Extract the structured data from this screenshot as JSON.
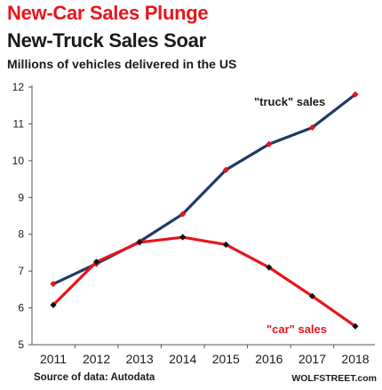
{
  "header": {
    "title": "New-Car Sales Plunge",
    "title2": "New-Truck Sales Soar",
    "subtitle": "Millions of vehicles delivered in the US"
  },
  "footer": {
    "source": "Source of data: Autodata",
    "credit": "WOLFSTREET.com"
  },
  "colors": {
    "truck_line": "#1f3a64",
    "truck_marker": "#e8141b",
    "car_line": "#e8141b",
    "car_marker": "#111111",
    "axis": "#555555",
    "title_red": "#e8141b"
  },
  "chart_data": {
    "type": "line",
    "title": "New-Car Sales Plunge",
    "subtitle": "New-Truck Sales Soar",
    "ylabel": "Millions of vehicles delivered in the US",
    "xlabel": "",
    "x": [
      "2011",
      "2012",
      "2013",
      "2014",
      "2015",
      "2016",
      "2017",
      "2018"
    ],
    "ylim": [
      5,
      12
    ],
    "yticks": [
      5,
      6,
      7,
      8,
      9,
      10,
      11,
      12
    ],
    "grid": false,
    "series": [
      {
        "name": "\"truck\" sales",
        "values": [
          6.65,
          7.2,
          7.8,
          8.55,
          9.75,
          10.45,
          10.9,
          11.8
        ]
      },
      {
        "name": "\"car\" sales",
        "values": [
          6.08,
          7.25,
          7.78,
          7.92,
          7.72,
          7.1,
          6.32,
          5.5
        ]
      }
    ]
  }
}
